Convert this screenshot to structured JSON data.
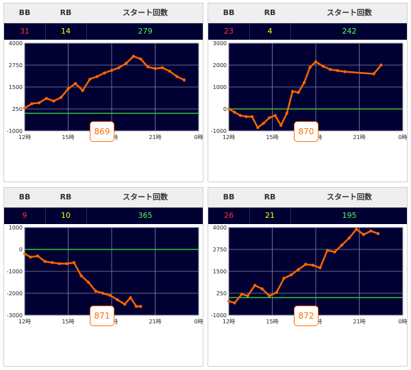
{
  "header_labels": {
    "bb": "BB",
    "rb": "RB",
    "start": "スタート回数"
  },
  "colors": {
    "line": "#ff6600",
    "zero_line": "#33cc33",
    "plot_bg": "#000033",
    "grid": "#8a8aa6",
    "button": "#ff6a00"
  },
  "panels": [
    {
      "bb": "31",
      "rb": "14",
      "start": "279",
      "button": "869"
    },
    {
      "bb": "23",
      "rb": "4",
      "start": "242",
      "button": "870"
    },
    {
      "bb": "9",
      "rb": "10",
      "start": "365",
      "button": "871"
    },
    {
      "bb": "26",
      "rb": "21",
      "start": "195",
      "button": "872"
    }
  ],
  "chart_data": [
    {
      "type": "line",
      "x_tick_labels": [
        "12時",
        "15時",
        "18時",
        "21時",
        "0時"
      ],
      "xlim": [
        12,
        24
      ],
      "y_ticks": [
        4000,
        2750,
        1500,
        250,
        -1000
      ],
      "ylim": [
        -1000,
        4000
      ],
      "reference_line": 0,
      "grid": true,
      "x": [
        12.0,
        12.5,
        13.0,
        13.5,
        14.0,
        14.5,
        15.0,
        15.5,
        16.0,
        16.5,
        17.0,
        17.5,
        18.0,
        18.5,
        19.0,
        19.5,
        20.0,
        20.5,
        21.0,
        21.5,
        22.0,
        22.5,
        23.0
      ],
      "y": [
        300,
        550,
        600,
        850,
        700,
        900,
        1400,
        1700,
        1300,
        1950,
        2100,
        2300,
        2450,
        2600,
        2850,
        3250,
        3100,
        2650,
        2550,
        2600,
        2400,
        2100,
        1900
      ]
    },
    {
      "type": "line",
      "x_tick_labels": [
        "12時",
        "15時",
        "18時",
        "21時",
        "0時"
      ],
      "xlim": [
        12,
        24
      ],
      "y_ticks": [
        3000,
        2000,
        1000,
        0,
        -1000
      ],
      "ylim": [
        -1000,
        3000
      ],
      "reference_line": 0,
      "grid": true,
      "x": [
        12.0,
        12.4,
        12.8,
        13.2,
        13.6,
        14.0,
        14.4,
        14.8,
        15.2,
        15.6,
        16.0,
        16.4,
        16.8,
        17.2,
        17.6,
        18.0,
        18.5,
        19.0,
        19.5,
        20.0,
        22.0,
        22.5
      ],
      "y": [
        0,
        -150,
        -300,
        -350,
        -350,
        -850,
        -650,
        -400,
        -300,
        -750,
        -200,
        800,
        750,
        1200,
        1900,
        2150,
        1950,
        1800,
        1750,
        1700,
        1600,
        2000
      ]
    },
    {
      "type": "line",
      "x_tick_labels": [
        "12時",
        "15時",
        "18時",
        "21時",
        "0時"
      ],
      "xlim": [
        12,
        24
      ],
      "y_ticks": [
        1000,
        0,
        -1000,
        -2000,
        -3000
      ],
      "ylim": [
        -3000,
        1000
      ],
      "reference_line": 0,
      "grid": true,
      "x": [
        12.0,
        12.4,
        12.9,
        13.4,
        13.9,
        14.4,
        14.9,
        15.4,
        15.9,
        16.4,
        16.9,
        17.4,
        17.9,
        18.4,
        18.9,
        19.3,
        19.7,
        20.0
      ],
      "y": [
        -200,
        -350,
        -300,
        -550,
        -600,
        -650,
        -650,
        -600,
        -1200,
        -1500,
        -1900,
        -2000,
        -2100,
        -2300,
        -2500,
        -2200,
        -2600,
        -2600
      ]
    },
    {
      "type": "line",
      "x_tick_labels": [
        "12時",
        "15時",
        "18時",
        "21時",
        "0時"
      ],
      "xlim": [
        12,
        24
      ],
      "y_ticks": [
        4000,
        2750,
        1500,
        250,
        -1000
      ],
      "ylim": [
        -1000,
        4000
      ],
      "reference_line": 0,
      "grid": true,
      "x": [
        12.0,
        12.4,
        12.9,
        13.3,
        13.8,
        14.3,
        14.8,
        15.3,
        15.8,
        16.3,
        16.8,
        17.3,
        17.8,
        18.3,
        18.8,
        19.3,
        19.8,
        20.3,
        20.8,
        21.3,
        21.8,
        22.3
      ],
      "y": [
        -200,
        -300,
        200,
        100,
        700,
        500,
        100,
        300,
        1100,
        1300,
        1600,
        1900,
        1850,
        1700,
        2700,
        2600,
        3000,
        3400,
        3900,
        3600,
        3800,
        3650
      ]
    }
  ]
}
